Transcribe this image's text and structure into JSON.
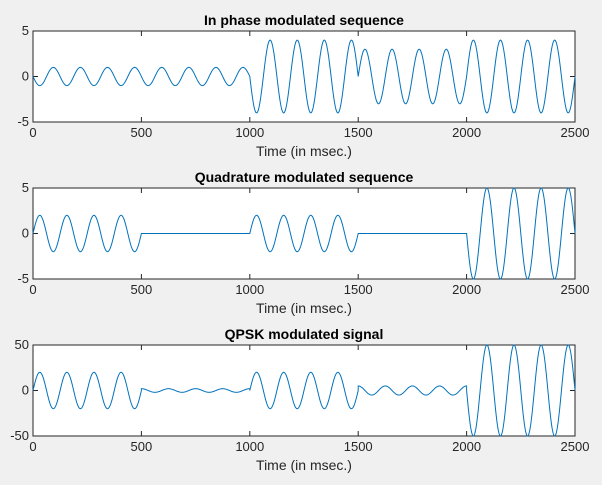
{
  "colors": {
    "figure_bg": "#f0f0f0",
    "axes_bg": "#ffffff",
    "axis": "#262626",
    "line": "#0072bd"
  },
  "chart_data": [
    {
      "type": "line",
      "title": "In phase modulated sequence",
      "xlabel": "Time (in msec.)",
      "ylabel": "",
      "xlim": [
        0,
        2500
      ],
      "ylim": [
        -5,
        5
      ],
      "xticks": [
        0,
        500,
        1000,
        1500,
        2000,
        2500
      ],
      "yticks": [
        5,
        0,
        -5
      ],
      "grid": false,
      "carrier_period_msec": 125,
      "segments": [
        {
          "t_start": 0,
          "t_end": 1000,
          "amplitude": 1,
          "phase_deg": 180
        },
        {
          "t_start": 1000,
          "t_end": 1500,
          "amplitude": 4,
          "phase_deg": 180
        },
        {
          "t_start": 1500,
          "t_end": 2000,
          "amplitude": 3,
          "phase_deg": 0
        },
        {
          "t_start": 2000,
          "t_end": 2500,
          "amplitude": 4,
          "phase_deg": 0
        }
      ]
    },
    {
      "type": "line",
      "title": "Quadrature modulated sequence",
      "xlabel": "Time (in msec.)",
      "ylabel": "",
      "xlim": [
        0,
        2500
      ],
      "ylim": [
        -5,
        5
      ],
      "xticks": [
        0,
        500,
        1000,
        1500,
        2000,
        2500
      ],
      "yticks": [
        5,
        0,
        -5
      ],
      "grid": false,
      "carrier_period_msec": 125,
      "segments": [
        {
          "t_start": 0,
          "t_end": 500,
          "amplitude": 2,
          "phase_deg": 0
        },
        {
          "t_start": 500,
          "t_end": 1000,
          "amplitude": 0,
          "phase_deg": 0
        },
        {
          "t_start": 1000,
          "t_end": 1500,
          "amplitude": 2,
          "phase_deg": 0
        },
        {
          "t_start": 1500,
          "t_end": 2000,
          "amplitude": 0,
          "phase_deg": 0
        },
        {
          "t_start": 2000,
          "t_end": 2500,
          "amplitude": 5,
          "phase_deg": 180
        }
      ]
    },
    {
      "type": "line",
      "title": "QPSK modulated signal",
      "xlabel": "Time (in msec.)",
      "ylabel": "",
      "xlim": [
        0,
        2500
      ],
      "ylim": [
        -50,
        50
      ],
      "xticks": [
        0,
        500,
        1000,
        1500,
        2000,
        2500
      ],
      "yticks": [
        50,
        0,
        -50
      ],
      "grid": false,
      "carrier_period_msec": 125,
      "segments": [
        {
          "t_start": 0,
          "t_end": 500,
          "amplitude": 20,
          "phase_deg": 0
        },
        {
          "t_start": 500,
          "t_end": 1000,
          "amplitude": 2,
          "phase_deg": 90
        },
        {
          "t_start": 1000,
          "t_end": 1500,
          "amplitude": 20,
          "phase_deg": 0
        },
        {
          "t_start": 1500,
          "t_end": 2000,
          "amplitude": 5,
          "phase_deg": 90
        },
        {
          "t_start": 2000,
          "t_end": 2500,
          "amplitude": 50,
          "phase_deg": 180
        }
      ]
    }
  ]
}
